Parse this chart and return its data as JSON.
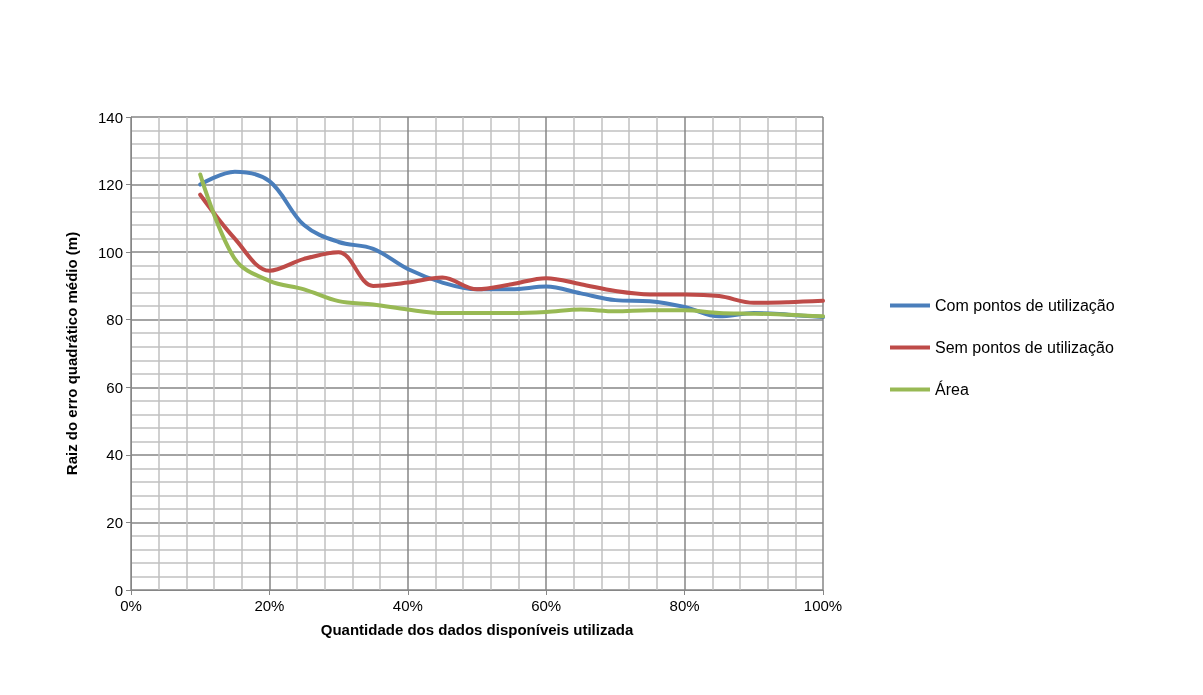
{
  "chart_data": {
    "type": "line",
    "xlabel": "Quantidade dos dados disponíveis utilizada",
    "ylabel": "Raiz do erro quadrático médio (m)",
    "x": [
      10,
      15,
      20,
      25,
      30,
      35,
      40,
      45,
      50,
      55,
      60,
      65,
      70,
      75,
      80,
      85,
      90,
      95,
      100
    ],
    "series": [
      {
        "name": "Com pontos de utilização",
        "color": "#4a7ebb",
        "values": [
          120,
          123.8,
          121,
          108,
          103,
          101,
          95,
          91,
          89,
          89,
          89.8,
          87.8,
          85.8,
          85.5,
          83.8,
          81,
          82,
          81.5,
          80.8
        ]
      },
      {
        "name": "Sem pontos de utilização",
        "color": "#be4b48",
        "values": [
          117,
          104,
          94.5,
          98,
          100,
          90,
          91,
          92.5,
          89,
          90.5,
          92.3,
          90.5,
          88.5,
          87.5,
          87.5,
          87,
          85,
          85.2,
          85.6
        ]
      },
      {
        "name": "Área",
        "color": "#98b954",
        "values": [
          123,
          98,
          91.5,
          89,
          85.5,
          84.5,
          83,
          82,
          82,
          82,
          82.3,
          83,
          82.5,
          82.8,
          82.8,
          82,
          81.8,
          81.5,
          81
        ]
      }
    ],
    "xlim": [
      0,
      100
    ],
    "xticks": [
      {
        "value": 0,
        "label": "0%"
      },
      {
        "value": 20,
        "label": "20%"
      },
      {
        "value": 40,
        "label": "40%"
      },
      {
        "value": 60,
        "label": "60%"
      },
      {
        "value": 80,
        "label": "80%"
      },
      {
        "value": 100,
        "label": "100%"
      }
    ],
    "ylim": [
      0,
      140
    ],
    "yticks": [
      0,
      20,
      40,
      60,
      80,
      100,
      120,
      140
    ],
    "grid": true,
    "legend": "right",
    "marker": "none",
    "line_style": "solid"
  }
}
